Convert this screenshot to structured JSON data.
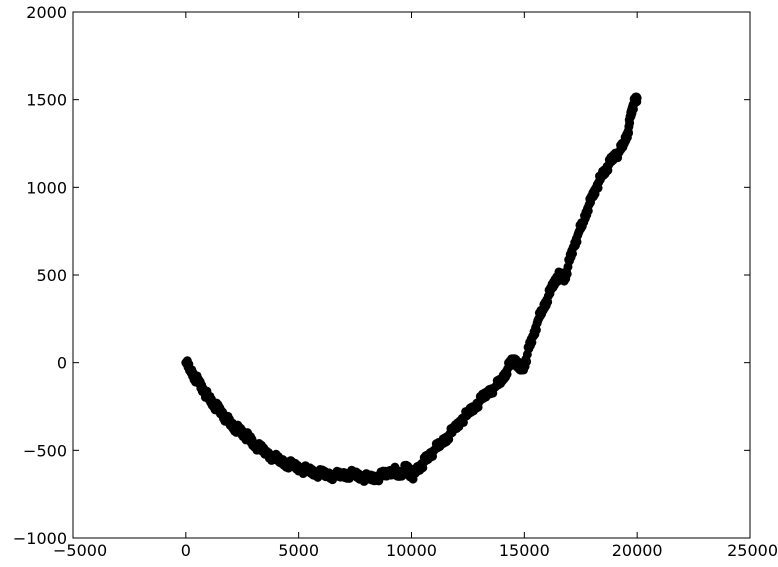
{
  "chart_data": {
    "type": "scatter",
    "title": "",
    "xlabel": "",
    "ylabel": "",
    "xlim": [
      -5000,
      25000
    ],
    "ylim": [
      -1000,
      2000
    ],
    "xticks": [
      -5000,
      0,
      5000,
      10000,
      15000,
      20000,
      25000
    ],
    "yticks": [
      -1000,
      -500,
      0,
      500,
      1000,
      1500,
      2000
    ],
    "xtick_labels": [
      "−5000",
      "0",
      "5000",
      "10000",
      "15000",
      "20000",
      "25000"
    ],
    "ytick_labels": [
      "−1000",
      "−500",
      "0",
      "500",
      "1000",
      "1500",
      "2000"
    ],
    "grid": false,
    "legend": "none",
    "marker_color": "#000000",
    "series": [
      {
        "x": [
          0,
          200,
          400,
          600,
          800,
          1000,
          1200,
          1400,
          1600,
          1800,
          2000,
          2200,
          2400,
          2600,
          2800,
          3000,
          3300,
          3600,
          3900,
          4200,
          4500,
          4800,
          5100,
          5400,
          5700,
          6000,
          6300,
          6600,
          6900,
          7200,
          7500,
          7800,
          8100,
          8400,
          8700,
          9000,
          9200,
          9400,
          9600,
          9800,
          10000,
          10200,
          10400,
          10600,
          10800,
          11000,
          11300,
          11600,
          11900,
          12200,
          12500,
          12800,
          13100,
          13400,
          13700,
          14000,
          14200,
          14400,
          14600,
          14800,
          15000,
          15200,
          15400,
          15600,
          15800,
          16000,
          16200,
          16400,
          16600,
          16800,
          17000,
          17200,
          17400,
          17600,
          17800,
          18000,
          18200,
          18400,
          18600,
          18800,
          19000,
          19200,
          19400,
          19600,
          19700,
          19800,
          19900,
          20000
        ],
        "y": [
          0,
          -40,
          -80,
          -120,
          -160,
          -200,
          -230,
          -260,
          -290,
          -320,
          -350,
          -370,
          -390,
          -410,
          -430,
          -460,
          -490,
          -520,
          -540,
          -560,
          -575,
          -590,
          -605,
          -615,
          -625,
          -635,
          -640,
          -645,
          -640,
          -635,
          -640,
          -650,
          -660,
          -655,
          -645,
          -630,
          -610,
          -640,
          -620,
          -600,
          -650,
          -620,
          -590,
          -560,
          -530,
          -500,
          -460,
          -420,
          -380,
          -330,
          -290,
          -250,
          -210,
          -170,
          -140,
          -100,
          -50,
          0,
          20,
          -40,
          -20,
          80,
          150,
          240,
          300,
          360,
          420,
          480,
          500,
          480,
          580,
          660,
          740,
          800,
          880,
          940,
          1000,
          1060,
          1100,
          1140,
          1180,
          1200,
          1250,
          1320,
          1400,
          1460,
          1490,
          1510
        ]
      }
    ]
  }
}
